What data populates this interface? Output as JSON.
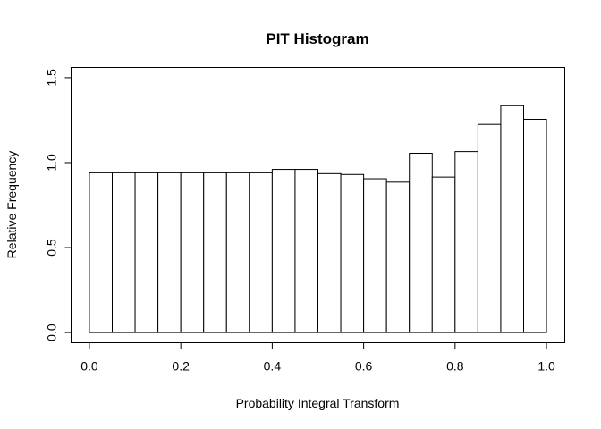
{
  "chart_data": {
    "type": "bar",
    "title": "PIT Histogram",
    "xlabel": "Probability Integral Transform",
    "ylabel": "Relative Frequency",
    "bin_edges": [
      0.0,
      0.05,
      0.1,
      0.15,
      0.2,
      0.25,
      0.3,
      0.35,
      0.4,
      0.45,
      0.5,
      0.55,
      0.6,
      0.65,
      0.7,
      0.75,
      0.8,
      0.85,
      0.9,
      0.95,
      1.0
    ],
    "values": [
      0.94,
      0.94,
      0.94,
      0.94,
      0.94,
      0.94,
      0.94,
      0.94,
      0.96,
      0.96,
      0.935,
      0.93,
      0.905,
      0.885,
      1.055,
      0.915,
      1.065,
      1.225,
      1.335,
      1.255
    ],
    "xlim": [
      -0.04,
      1.04
    ],
    "ylim": [
      -0.06,
      1.56
    ],
    "xticks": [
      "0.0",
      "0.2",
      "0.4",
      "0.6",
      "0.8",
      "1.0"
    ],
    "yticks": [
      "0.0",
      "0.5",
      "1.0",
      "1.5"
    ],
    "grid": false,
    "legend": "none",
    "bar_fill": "#ffffff",
    "bar_stroke": "#000000"
  }
}
